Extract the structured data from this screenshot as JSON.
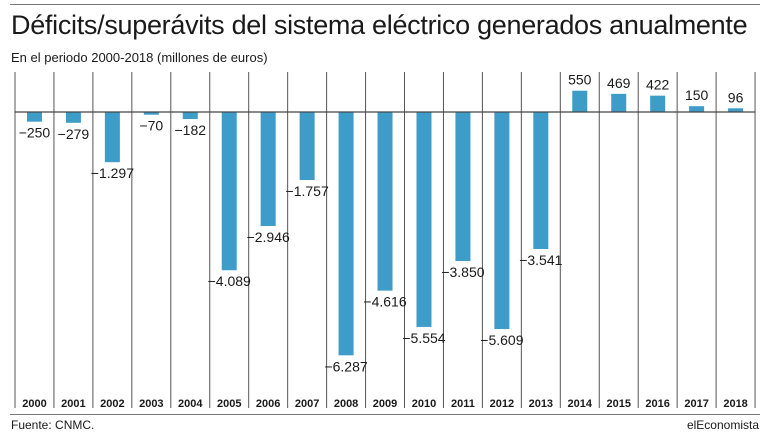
{
  "header": {
    "title": "Déficits/superávits del sistema eléctrico generados anualmente",
    "subtitle": "En el periodo 2000-2018 (millones de euros)"
  },
  "footer": {
    "source": "Fuente: CNMC.",
    "brand": "elEconomista"
  },
  "colors": {
    "bar": "#3d9dc8",
    "divider": "#555555",
    "baseline": "#444444"
  },
  "chart_data": {
    "type": "bar",
    "categories": [
      "2000",
      "2001",
      "2002",
      "2003",
      "2004",
      "2005",
      "2006",
      "2007",
      "2008",
      "2009",
      "2010",
      "2011",
      "2012",
      "2013",
      "2014",
      "2015",
      "2016",
      "2017",
      "2018"
    ],
    "values": [
      -250,
      -279,
      -1297,
      -70,
      -182,
      -4089,
      -2946,
      -1757,
      -6287,
      -4616,
      -5554,
      -3850,
      -5609,
      -3541,
      550,
      469,
      422,
      150,
      96
    ],
    "value_labels": [
      "−250",
      "−279",
      "−1.297",
      "−70",
      "−182",
      "−4.089",
      "−2.946",
      "−1.757",
      "−6.287",
      "−4.616",
      "−5.554",
      "−3.850",
      "−5.609",
      "−3.541",
      "550",
      "469",
      "422",
      "150",
      "96"
    ],
    "title": "",
    "xlabel": "",
    "ylabel": "",
    "grid": false,
    "legend": "none"
  }
}
